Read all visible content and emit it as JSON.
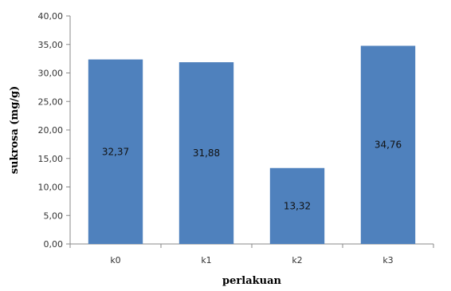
{
  "chart_data": {
    "type": "bar",
    "categories": [
      "k0",
      "k1",
      "k2",
      "k3"
    ],
    "values": [
      32.37,
      31.88,
      13.32,
      34.76
    ],
    "data_labels": [
      "32,37",
      "31,88",
      "13,32",
      "34,76"
    ],
    "xlabel": "perlakuan",
    "ylabel": "sukrosa (mg/g)",
    "ylim": [
      0,
      40
    ],
    "yticks": [
      0,
      5,
      10,
      15,
      20,
      25,
      30,
      35,
      40
    ],
    "ytick_labels": [
      "0,00",
      "5,00",
      "10,00",
      "15,00",
      "20,00",
      "25,00",
      "30,00",
      "35,00",
      "40,00"
    ],
    "grid": false,
    "legend": "none",
    "bar_color": "#4F81BD"
  }
}
